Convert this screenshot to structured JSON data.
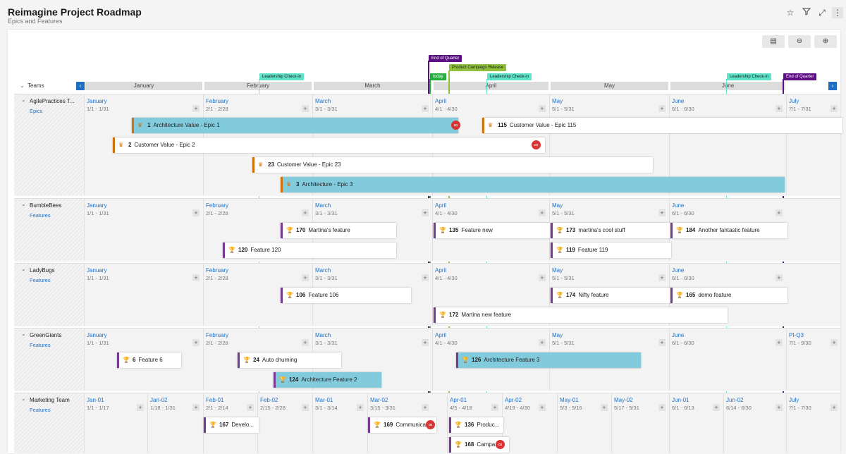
{
  "header": {
    "title": "Reimagine Project Roadmap",
    "subtitle": "Epics and Features"
  },
  "toolbar": {
    "icons": [
      "star-icon",
      "filter-icon",
      "expand-icon",
      "more-icon"
    ],
    "tools": [
      "calendar-icon",
      "zoom-out-icon",
      "zoom-in-icon"
    ]
  },
  "markers": [
    {
      "label": "End of Quarter",
      "color": "#5b0f82"
    },
    {
      "label": "Product Campaign Release",
      "color": "#8fc13c"
    },
    {
      "label": "today",
      "color": "#27ae3f"
    },
    {
      "label": "Leadership Check-in",
      "color": "#5ee3c8"
    },
    {
      "label": "Leadership Check-in",
      "color": "#5ee3c8"
    },
    {
      "label": "Leadership Check-in",
      "color": "#5ee3c8"
    },
    {
      "label": "End of Quarter",
      "color": "#5b0f82"
    }
  ],
  "timeline": {
    "teams_label": "Teams",
    "months": [
      "January",
      "February",
      "March",
      "April",
      "May",
      "June"
    ]
  },
  "teams": [
    {
      "name": "AgilePractices T...",
      "link": "Epics",
      "columns": [
        [
          "January",
          "1/1 - 1/31"
        ],
        [
          "February",
          "2/1 - 2/28"
        ],
        [
          "March",
          "3/1 - 3/31"
        ],
        [
          "April",
          "4/1 - 4/30"
        ],
        [
          "May",
          "5/1 - 5/31"
        ],
        [
          "June",
          "6/1 - 6/30"
        ],
        [
          "July",
          "7/1 - 7/31"
        ]
      ],
      "items": [
        {
          "num": "1",
          "title": "Architecture Value - Epic 1"
        },
        {
          "num": "115",
          "title": "Customer Value - Epic 115"
        },
        {
          "num": "2",
          "title": "Customer Value - Epic 2"
        },
        {
          "num": "23",
          "title": "Customer Value - Epic 23"
        },
        {
          "num": "3",
          "title": "Architecture - Epic 3"
        }
      ]
    },
    {
      "name": "BumbleBees",
      "link": "Features",
      "columns": [
        [
          "January",
          "1/1 - 1/31"
        ],
        [
          "February",
          "2/1 - 2/28"
        ],
        [
          "March",
          "3/1 - 3/31"
        ],
        [
          "April",
          "4/1 - 4/30"
        ],
        [
          "May",
          "5/1 - 5/31"
        ],
        [
          "June",
          "6/1 - 6/30"
        ]
      ],
      "items": [
        {
          "num": "170",
          "title": "Martina's feature"
        },
        {
          "num": "135",
          "title": "Feature new"
        },
        {
          "num": "173",
          "title": "martina's cool stuff"
        },
        {
          "num": "184",
          "title": "Another fantastic feature"
        },
        {
          "num": "120",
          "title": "Feature 120"
        },
        {
          "num": "119",
          "title": "Feature 119"
        }
      ]
    },
    {
      "name": "LadyBugs",
      "link": "Features",
      "columns": [
        [
          "January",
          "1/1 - 1/31"
        ],
        [
          "February",
          "2/1 - 2/28"
        ],
        [
          "March",
          "3/1 - 3/31"
        ],
        [
          "April",
          "4/1 - 4/30"
        ],
        [
          "May",
          "5/1 - 5/31"
        ],
        [
          "June",
          "6/1 - 6/30"
        ]
      ],
      "items": [
        {
          "num": "106",
          "title": "Feature 106"
        },
        {
          "num": "174",
          "title": "Nifty feature"
        },
        {
          "num": "165",
          "title": "demo feature"
        },
        {
          "num": "172",
          "title": "Martina new feature"
        }
      ]
    },
    {
      "name": "GreenGiants",
      "link": "Features",
      "columns": [
        [
          "January",
          "1/1 - 1/31"
        ],
        [
          "February",
          "2/1 - 2/28"
        ],
        [
          "March",
          "3/1 - 3/31"
        ],
        [
          "April",
          "4/1 - 4/30"
        ],
        [
          "May",
          "5/1 - 5/31"
        ],
        [
          "June",
          "6/1 - 6/30"
        ],
        [
          "PI-Q3",
          "7/1 - 9/30"
        ]
      ],
      "items": [
        {
          "num": "6",
          "title": "Feature 6"
        },
        {
          "num": "24",
          "title": "Auto churning"
        },
        {
          "num": "126",
          "title": "Architecture Feature 3"
        },
        {
          "num": "124",
          "title": "Architecture Feature 2"
        }
      ]
    },
    {
      "name": "Marketing Team",
      "link": "Features",
      "columns": [
        [
          "Jan-01",
          "1/1 - 1/17"
        ],
        [
          "Jan-02",
          "1/18 - 1/31"
        ],
        [
          "Feb-01",
          "2/1 - 2/14"
        ],
        [
          "Feb-02",
          "2/15 - 2/28"
        ],
        [
          "Mar-01",
          "3/1 - 3/14"
        ],
        [
          "Mar-02",
          "3/15 - 3/31"
        ],
        [
          "Apr-01",
          "4/5 - 4/18"
        ],
        [
          "Apr-02",
          "4/19 - 4/30"
        ],
        [
          "May-01",
          "5/3 - 5/16"
        ],
        [
          "May-02",
          "5/17 - 5/31"
        ],
        [
          "Jun-01",
          "6/1 - 6/13"
        ],
        [
          "Jun-02",
          "6/14 - 6/30"
        ],
        [
          "July",
          "7/1 - 7/30"
        ]
      ],
      "items": [
        {
          "num": "167",
          "title": "Develo..."
        },
        {
          "num": "169",
          "title": "Communica..."
        },
        {
          "num": "136",
          "title": "Produc..."
        },
        {
          "num": "168",
          "title": "Campa..."
        }
      ]
    }
  ]
}
